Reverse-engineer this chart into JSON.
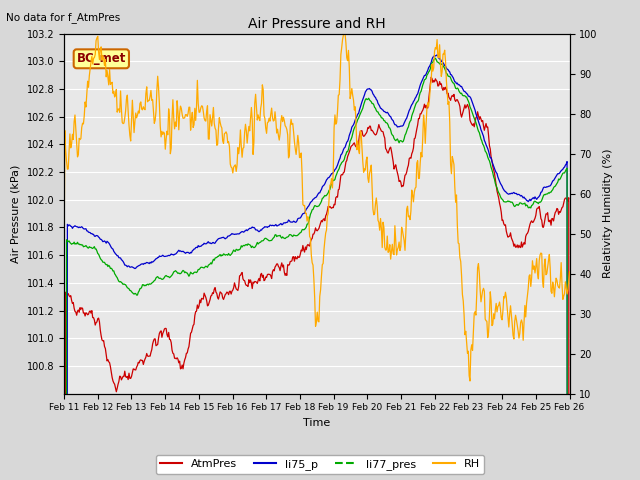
{
  "title": "Air Pressure and RH",
  "subtitle": "No data for f_AtmPres",
  "xlabel": "Time",
  "ylabel_left": "Air Pressure (kPa)",
  "ylabel_right": "Relativity Humidity (%)",
  "annotation": "BC_met",
  "ylim_left": [
    100.6,
    103.2
  ],
  "ylim_right": [
    10,
    100
  ],
  "yticks_left": [
    100.8,
    101.0,
    101.2,
    101.4,
    101.6,
    101.8,
    102.0,
    102.2,
    102.4,
    102.6,
    102.8,
    103.0,
    103.2
  ],
  "yticks_right": [
    10,
    20,
    30,
    40,
    50,
    60,
    70,
    80,
    90,
    100
  ],
  "xtick_labels": [
    "Feb 11",
    "Feb 12",
    "Feb 13",
    "Feb 14",
    "Feb 15",
    "Feb 16",
    "Feb 17",
    "Feb 18",
    "Feb 19",
    "Feb 20",
    "Feb 21",
    "Feb 22",
    "Feb 23",
    "Feb 24",
    "Feb 25",
    "Feb 26"
  ],
  "colors": {
    "AtmPres": "#cc0000",
    "li75_p": "#0000cc",
    "li77_pres": "#00aa00",
    "RH": "#ffaa00"
  },
  "fig_bg": "#d8d8d8",
  "plot_bg": "#e8e8e8",
  "grid_color": "#ffffff"
}
